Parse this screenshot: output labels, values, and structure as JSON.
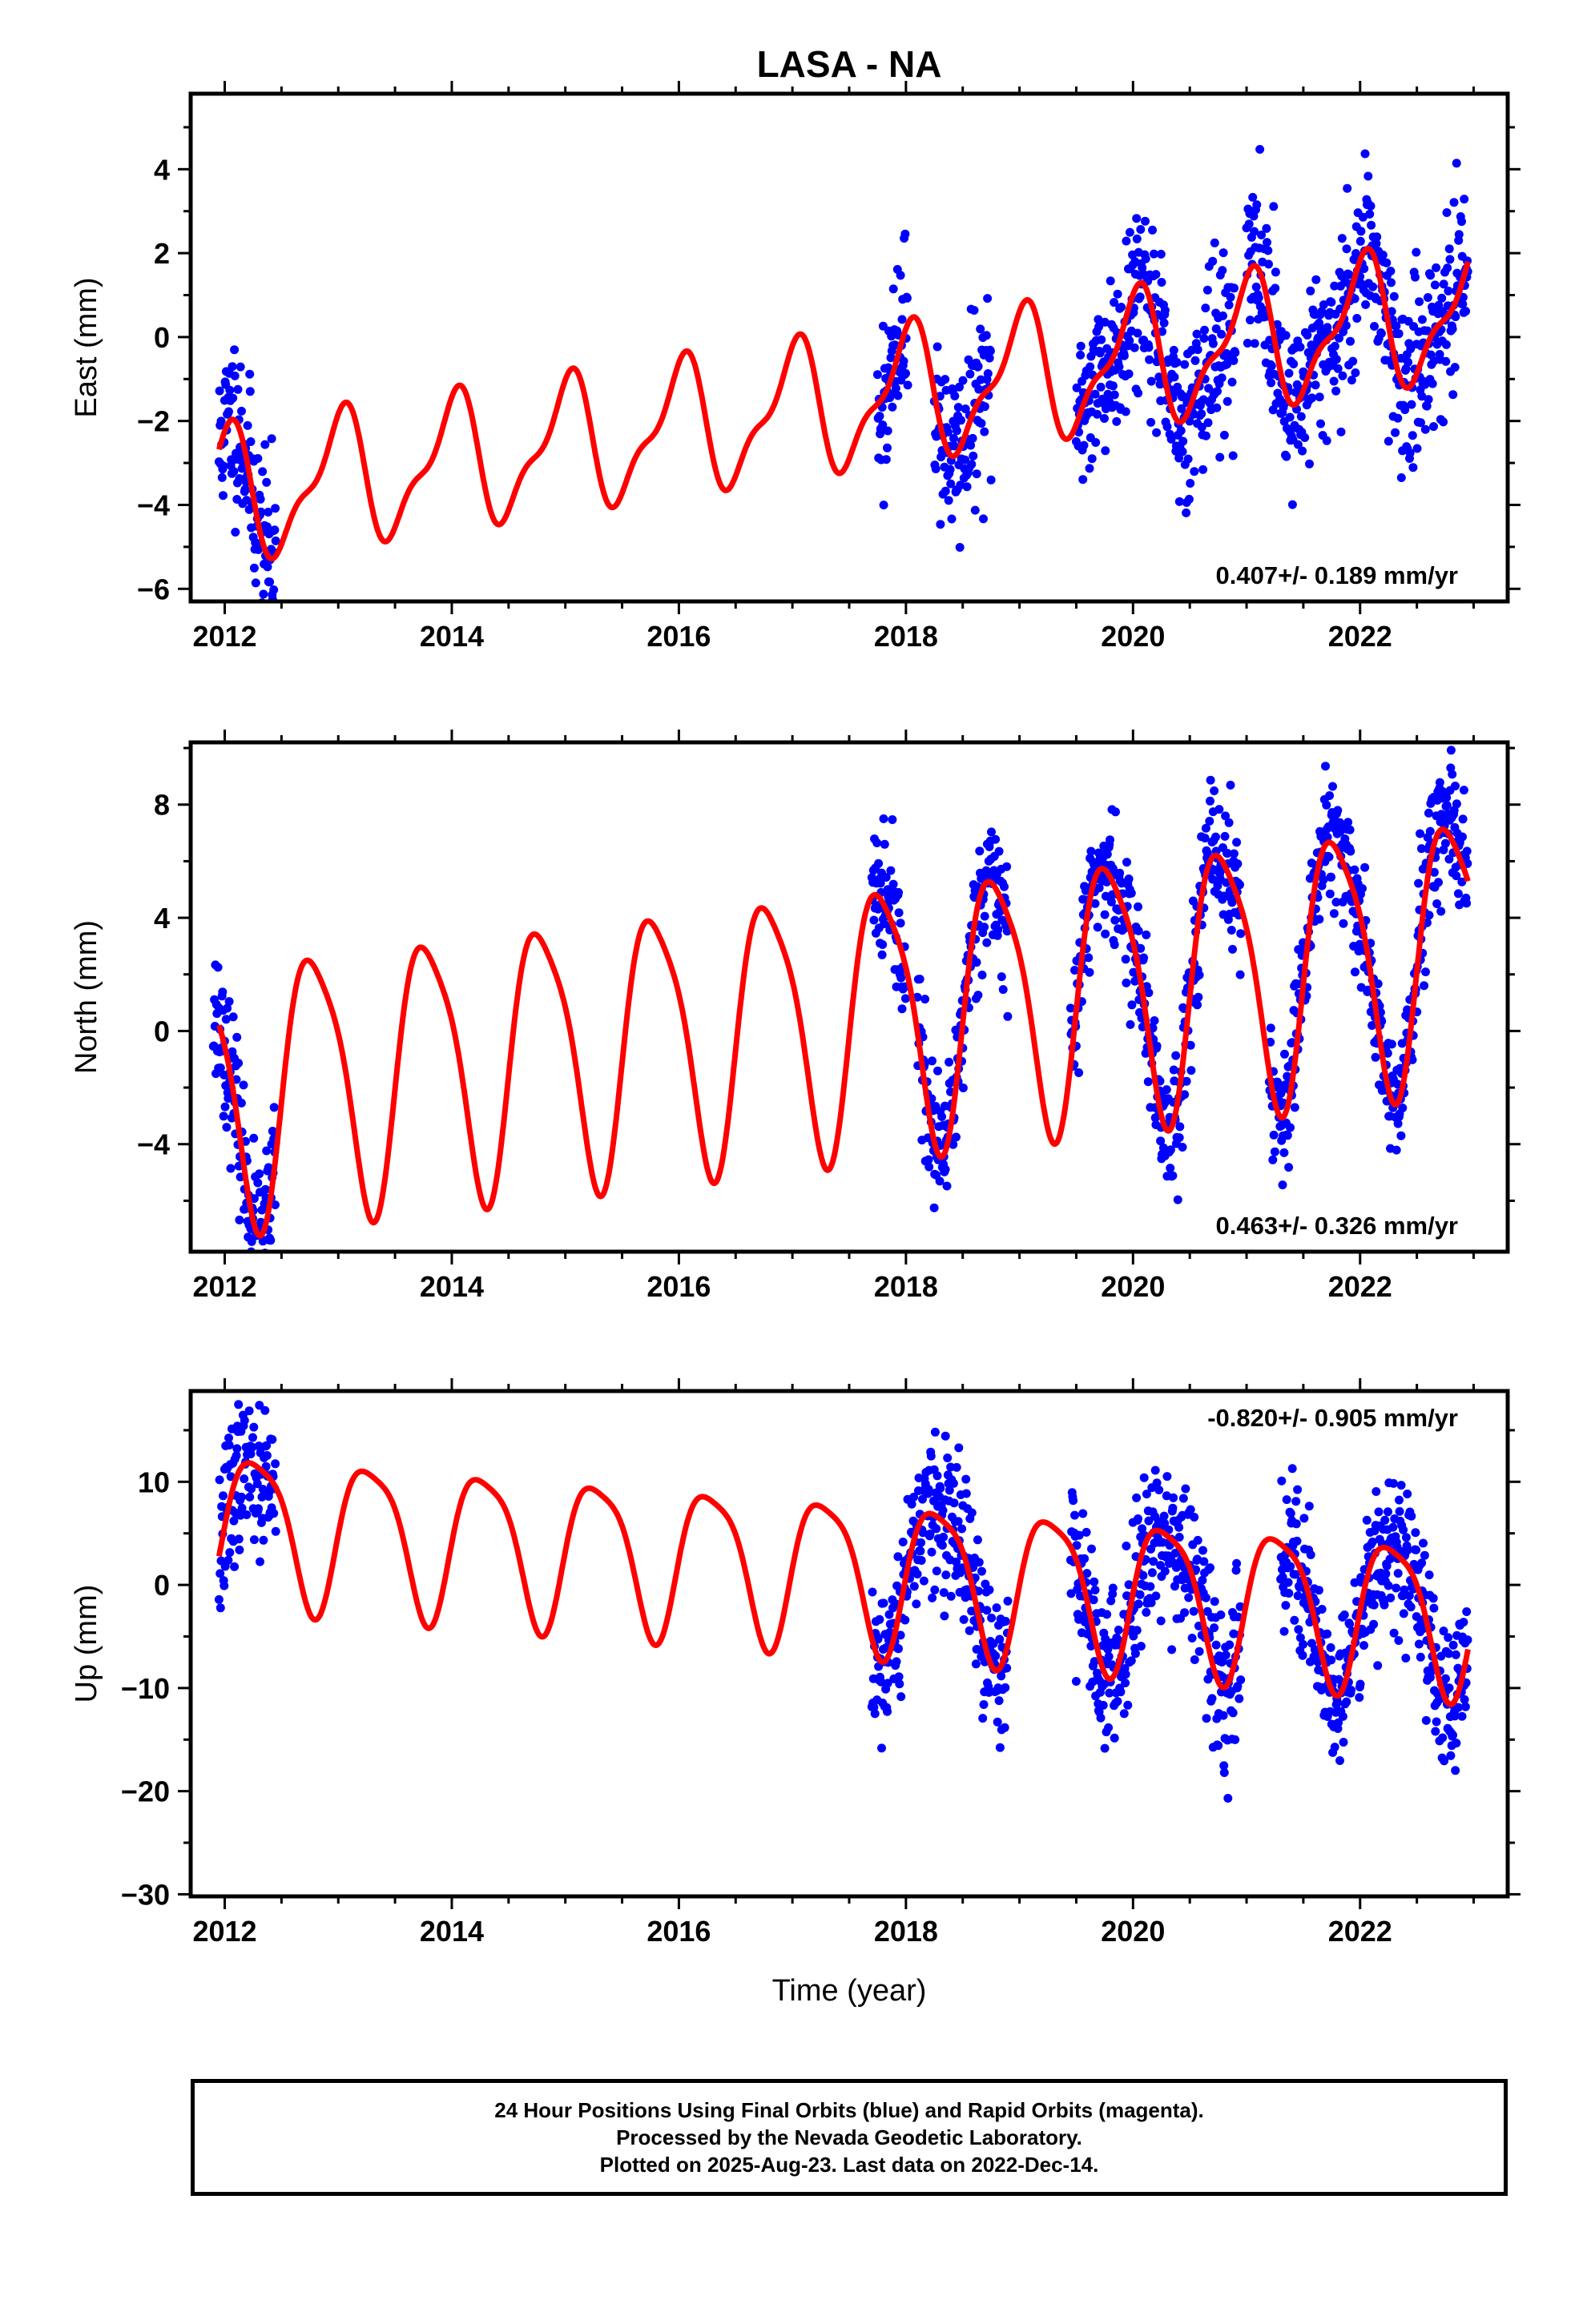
{
  "title": "LASA - NA",
  "colors": {
    "data": "#0000ff",
    "model": "#ff0000",
    "axis": "#000000"
  },
  "chart_data": [
    {
      "type": "scatter",
      "component": "east",
      "ylabel": "East (mm)",
      "xlabel": "",
      "xlim": [
        2011.7,
        2023.3
      ],
      "ylim": [
        -6.3,
        5.8
      ],
      "yticks": [
        -6,
        -4,
        -2,
        0,
        2,
        4
      ],
      "xticks": [
        2012,
        2014,
        2016,
        2018,
        2020,
        2022
      ],
      "xtick_labels": [
        "2012",
        "2014",
        "2016",
        "2018",
        "2020",
        "2022"
      ],
      "ytick_labels": [
        "−6",
        "−4",
        "−2",
        "0",
        "2",
        "4"
      ],
      "rate_label": "0.407+/- 0.189 mm/yr",
      "rate_position": "bottom-right",
      "model": {
        "offset": -3.8,
        "rate": 0.407,
        "t0": 2012.0,
        "annual_amp": 1.45,
        "annual_phase": 1.55,
        "semi_amp": 0.55,
        "semi_phase": 0.2
      },
      "data_segments": [
        [
          2011.95,
          2012.45
        ],
        [
          2017.75,
          2018.02
        ],
        [
          2018.25,
          2018.75
        ],
        [
          2019.5,
          2020.9
        ],
        [
          2021.0,
          2022.95
        ]
      ],
      "scatter_sd": 1.05,
      "seed": 11
    },
    {
      "type": "scatter",
      "component": "north",
      "ylabel": "North (mm)",
      "xlabel": "",
      "xlim": [
        2011.7,
        2023.3
      ],
      "ylim": [
        -7.8,
        10.2
      ],
      "yticks": [
        -4,
        0,
        4,
        8
      ],
      "xticks": [
        2012,
        2014,
        2016,
        2018,
        2020,
        2022
      ],
      "xtick_labels": [
        "2012",
        "2014",
        "2016",
        "2018",
        "2020",
        "2022"
      ],
      "ytick_labels": [
        "−4",
        "0",
        "4",
        "8"
      ],
      "rate_label": "0.463+/- 0.326 mm/yr",
      "rate_position": "bottom-right",
      "model": {
        "offset": -2.0,
        "rate": 0.463,
        "t0": 2012.0,
        "annual_amp": 4.6,
        "annual_phase": 2.9,
        "semi_amp": 0.9,
        "semi_phase": 0.4
      },
      "data_segments": [
        [
          2011.9,
          2012.45
        ],
        [
          2017.7,
          2018.0
        ],
        [
          2018.1,
          2018.9
        ],
        [
          2019.45,
          2020.95
        ],
        [
          2021.2,
          2022.95
        ]
      ],
      "scatter_sd": 1.2,
      "seed": 23
    },
    {
      "type": "scatter",
      "component": "up",
      "ylabel": "Up (mm)",
      "xlabel": "Time (year)",
      "xlim": [
        2011.7,
        2023.3
      ],
      "ylim": [
        -30.2,
        18.8
      ],
      "yticks": [
        -30,
        -20,
        -10,
        0,
        10
      ],
      "xticks": [
        2012,
        2014,
        2016,
        2018,
        2020,
        2022
      ],
      "xtick_labels": [
        "2012",
        "2014",
        "2016",
        "2018",
        "2020",
        "2022"
      ],
      "ytick_labels": [
        "−30",
        "−20",
        "−10",
        "0",
        "10"
      ],
      "rate_label": "-0.820+/- 0.905 mm/yr",
      "rate_position": "top-right",
      "model": {
        "offset": 6.0,
        "rate": -0.82,
        "t0": 2012.0,
        "annual_amp": 7.2,
        "annual_phase": -0.2,
        "semi_amp": 1.6,
        "semi_phase": 0.8
      },
      "data_segments": [
        [
          2011.95,
          2012.45
        ],
        [
          2017.7,
          2018.9
        ],
        [
          2019.45,
          2020.95
        ],
        [
          2021.3,
          2022.95
        ]
      ],
      "scatter_sd": 3.8,
      "seed": 37
    }
  ],
  "footer": {
    "line1": "24 Hour Positions Using Final Orbits (blue) and Rapid Orbits (magenta).",
    "line2": "Processed by the Nevada Geodetic Laboratory.",
    "line3": "Plotted on 2025-Aug-23. Last data on 2022-Dec-14."
  }
}
